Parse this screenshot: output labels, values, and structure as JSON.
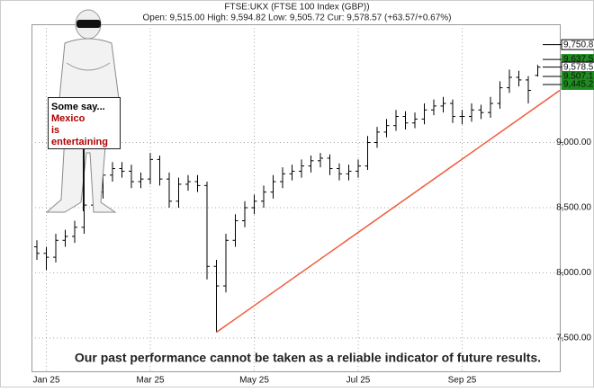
{
  "chart_data": {
    "type": "ohlc",
    "title": "FTSE:UKX (FTSE 100 Index (GBP))",
    "subtitle": "Open: 9,515.00 High: 9,594.82 Low: 9,505.72 Cur: 9,578.57 (+63.57/+0.67%)",
    "footnote": "Our past performance cannot be taken as a reliable indicator of future results.",
    "categories": [
      null,
      "Jan 25",
      null,
      null,
      null,
      null,
      null,
      null,
      null,
      null,
      null,
      null,
      "Mar 25",
      null,
      null,
      null,
      null,
      null,
      null,
      null,
      null,
      null,
      null,
      "May 25",
      null,
      null,
      null,
      null,
      null,
      null,
      null,
      null,
      null,
      null,
      "Jul 25",
      null,
      null,
      null,
      null,
      null,
      null,
      null,
      null,
      null,
      null,
      "Sep 25",
      null,
      null,
      null,
      null,
      null,
      null,
      null,
      null
    ],
    "open": [
      8200,
      8150,
      8120,
      8250,
      8280,
      8350,
      8520,
      8620,
      8750,
      8800,
      8780,
      8700,
      8720,
      8870,
      8720,
      8550,
      8680,
      8700,
      8670,
      8050,
      7900,
      8250,
      8400,
      8500,
      8550,
      8620,
      8700,
      8760,
      8780,
      8820,
      8860,
      8880,
      8800,
      8760,
      8780,
      8820,
      9000,
      9080,
      9130,
      9200,
      9150,
      9180,
      9250,
      9280,
      9300,
      9200,
      9200,
      9250,
      9230,
      9300,
      9420,
      9500,
      9480,
      9515
    ],
    "high": [
      8250,
      8200,
      8300,
      8330,
      8400,
      8570,
      8670,
      8800,
      8850,
      8850,
      8830,
      8770,
      8920,
      8900,
      8770,
      8730,
      8750,
      8750,
      8700,
      8100,
      8300,
      8450,
      8550,
      8600,
      8670,
      8750,
      8810,
      8830,
      8870,
      8900,
      8920,
      8910,
      8840,
      8830,
      8870,
      9050,
      9120,
      9180,
      9250,
      9240,
      9230,
      9300,
      9330,
      9350,
      9330,
      9250,
      9300,
      9290,
      9350,
      9470,
      9560,
      9550,
      9510,
      9594.82
    ],
    "low": [
      8100,
      8020,
      8080,
      8200,
      8230,
      8300,
      8470,
      8570,
      8700,
      8730,
      8650,
      8650,
      8680,
      8670,
      8500,
      8500,
      8630,
      8620,
      7950,
      7545,
      7850,
      8200,
      8350,
      8450,
      8500,
      8570,
      8650,
      8710,
      8730,
      8770,
      8810,
      8750,
      8710,
      8710,
      8730,
      8790,
      8960,
      9040,
      9090,
      9100,
      9110,
      9140,
      9210,
      9230,
      9150,
      9140,
      9160,
      9180,
      9190,
      9260,
      9380,
      9430,
      9300,
      9505.72
    ],
    "close": [
      8150,
      8120,
      8250,
      8280,
      8350,
      8520,
      8620,
      8750,
      8800,
      8780,
      8700,
      8720,
      8870,
      8720,
      8550,
      8680,
      8700,
      8670,
      8050,
      7900,
      8250,
      8400,
      8500,
      8550,
      8620,
      8700,
      8760,
      8780,
      8820,
      8860,
      8880,
      8800,
      8760,
      8780,
      8820,
      9000,
      9080,
      9130,
      9200,
      9150,
      9180,
      9250,
      9280,
      9300,
      9200,
      9200,
      9250,
      9230,
      9300,
      9420,
      9500,
      9480,
      9400,
      9578.57
    ],
    "color": "#000000",
    "ylim": [
      7245,
      9907
    ],
    "yticks": [
      {
        "value": 7500,
        "label": "7,500.00"
      },
      {
        "value": 8000,
        "label": "8,000.00"
      },
      {
        "value": 8500,
        "label": "8,500.00"
      },
      {
        "value": 9000,
        "label": "9,000.00"
      }
    ],
    "grid": true,
    "trendline": {
      "values": [
        7545,
        9400
      ],
      "color": "#f05a3c"
    },
    "levels": [
      {
        "value": 9750.8,
        "label": "9,750.8",
        "color": "#ffffff"
      },
      {
        "value": 9637.5,
        "label": "9,637.5",
        "color": "#1f8c1f"
      },
      {
        "value": 9578.5,
        "label": "9,578.5",
        "color": "#ffffff"
      },
      {
        "value": 9507.1,
        "label": "9,507.1",
        "color": "#1f8c1f"
      },
      {
        "value": 9445.2,
        "label": "9,445.2",
        "color": "#1f8c1f"
      }
    ],
    "sign": [
      "Some say...",
      "Mexico",
      "is",
      "entertaining"
    ]
  }
}
